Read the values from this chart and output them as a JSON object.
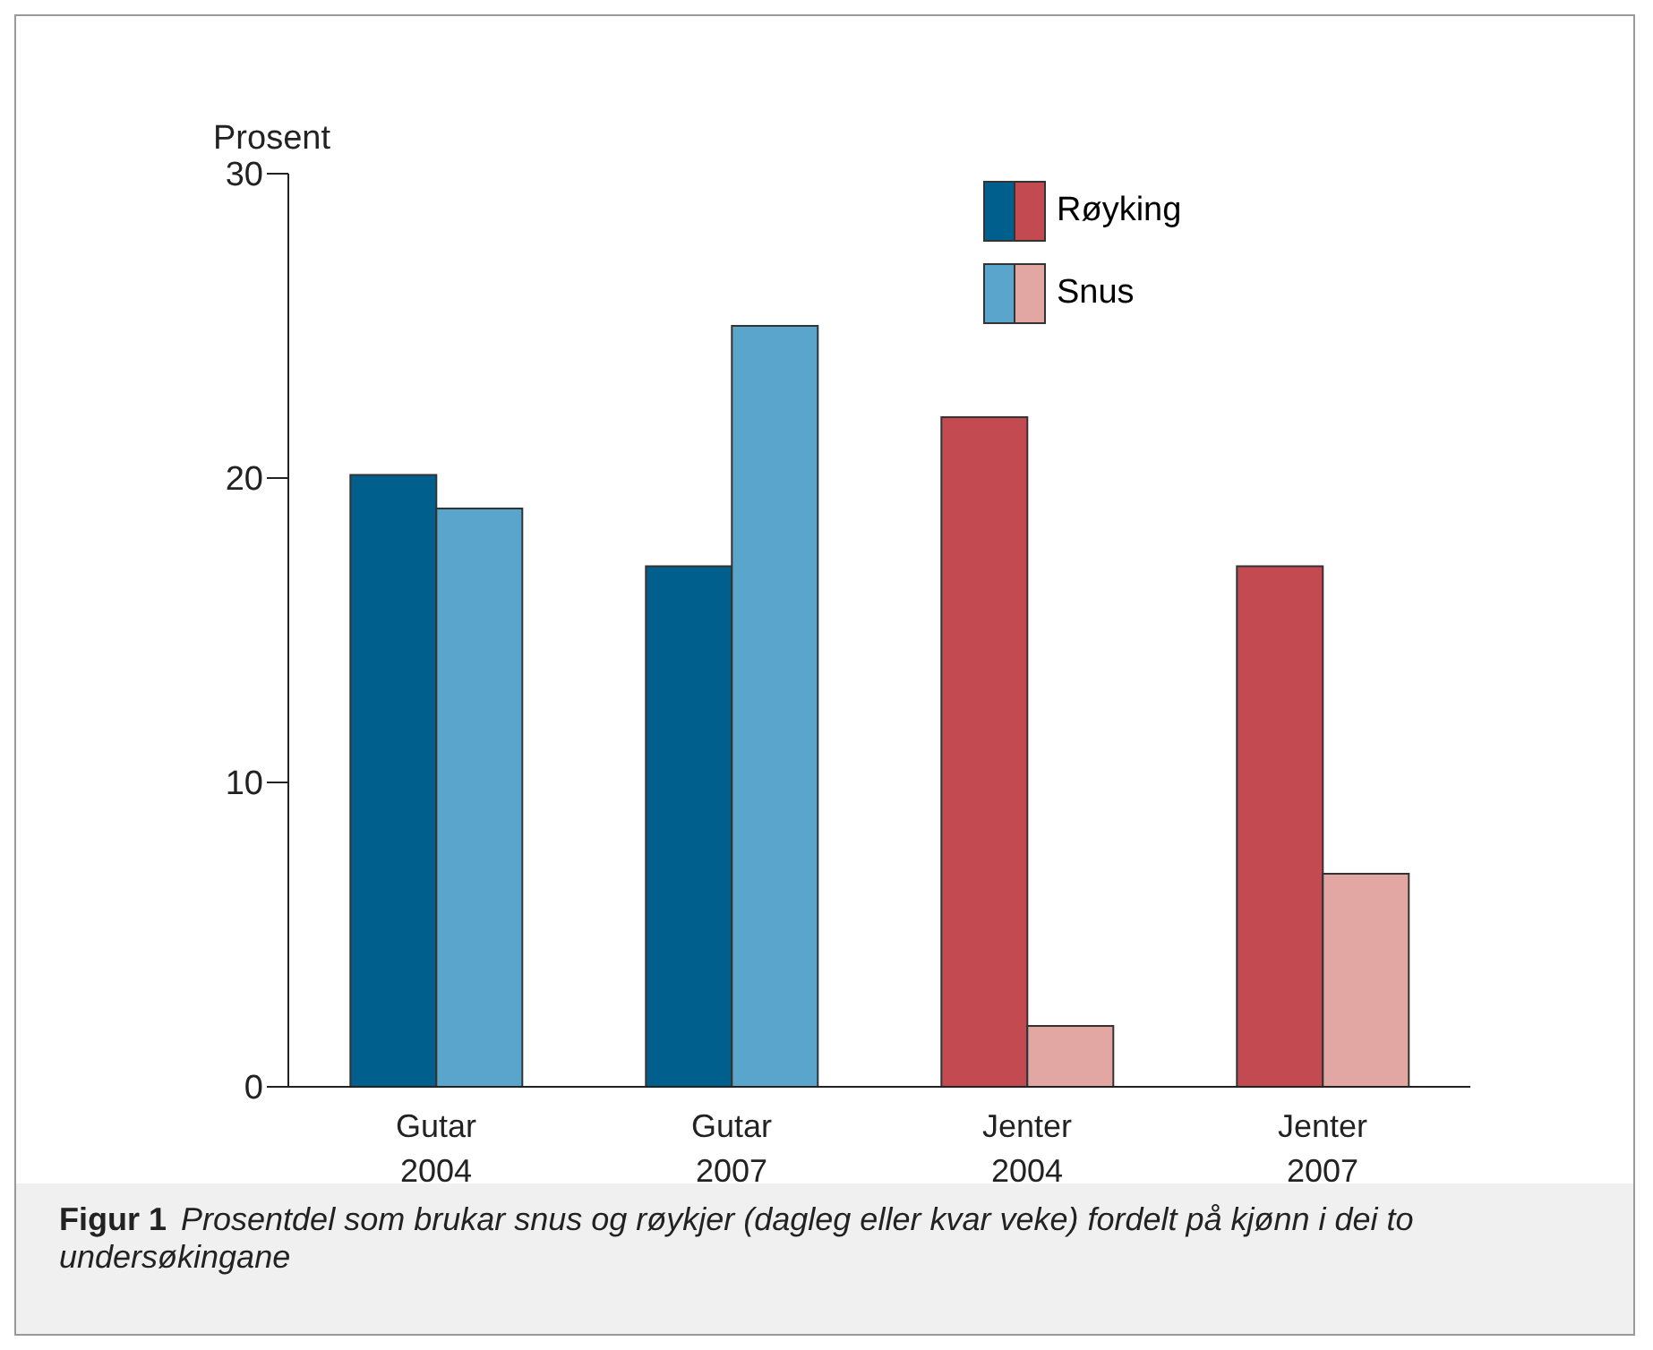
{
  "chart_data": {
    "type": "bar",
    "ylabel": "Prosent",
    "categories": [
      "Gutar\n2004",
      "Gutar\n2007",
      "Jenter\n2004",
      "Jenter\n2007"
    ],
    "series": [
      {
        "name": "Røyking",
        "colors": [
          "#005f8c",
          "#005f8c",
          "#c44a52",
          "#c44a52"
        ],
        "values": [
          20.1,
          17.1,
          22,
          17.1
        ]
      },
      {
        "name": "Snus",
        "colors": [
          "#5aa5cc",
          "#5aa5cc",
          "#e3a7a3",
          "#e3a7a3"
        ],
        "values": [
          19,
          25,
          2,
          7
        ]
      }
    ],
    "ylim": [
      0,
      30
    ],
    "yticks": [
      0,
      10,
      20,
      30
    ],
    "grid": false,
    "legend": "top",
    "annotations": [
      "Figur 1",
      "Prosentdel som brukar snus og røykjer (dagleg eller kvar veke) fordelt på kjønn i dei to undersøkingane"
    ]
  }
}
